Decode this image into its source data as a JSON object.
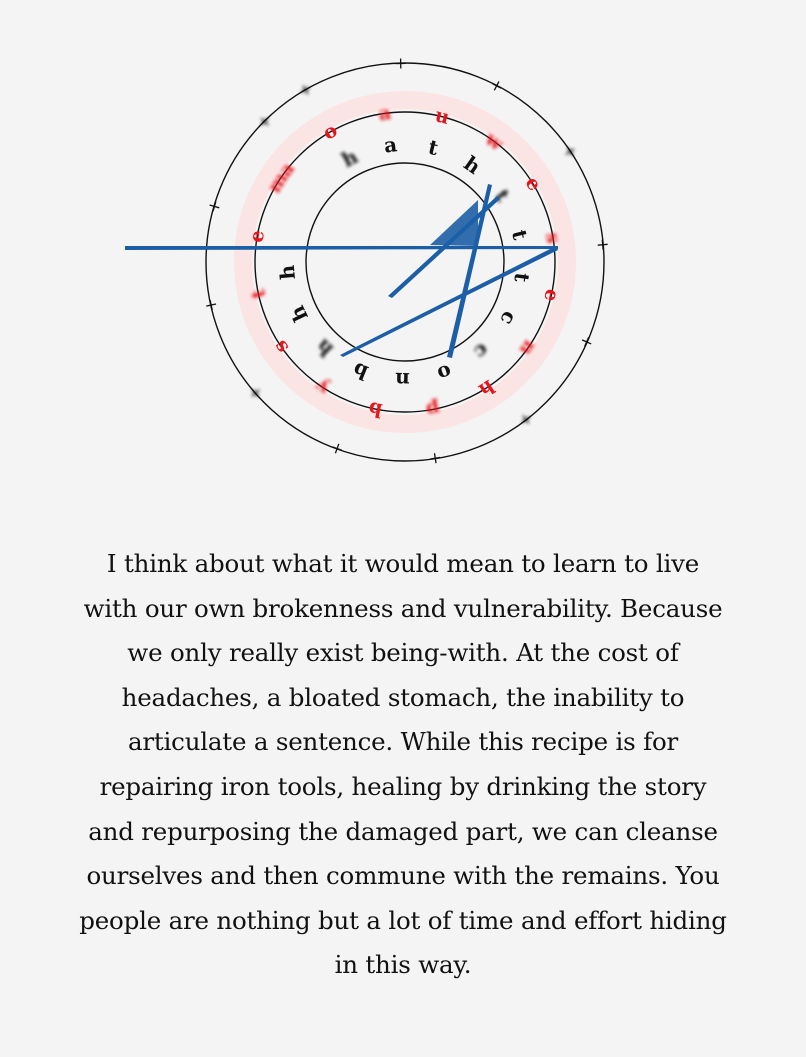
{
  "figure": {
    "inner_ring_letters": [
      "h",
      "a",
      "t",
      "h",
      "t",
      "t",
      "t",
      "c",
      "c",
      "o",
      "n",
      "b",
      "h",
      "h",
      "h"
    ],
    "middle_ring_letters": [
      "a",
      "o",
      "a",
      "u",
      "w",
      "e",
      "s",
      "e",
      "n",
      "h",
      "p",
      "b",
      "y",
      "s",
      "t",
      "e",
      "m"
    ],
    "outer_ring_marks": [
      "+",
      "+",
      "+",
      "+",
      "+",
      "+",
      "+",
      "+",
      "+",
      "+",
      "+",
      "+",
      "+"
    ],
    "colors": {
      "ring_stroke": "#111111",
      "red_letters": "#e8141b",
      "red_halo": "#fbe4e4",
      "blue_mark": "#1d5fa6"
    },
    "blue_mark_icon": "slanted-blue-strokes"
  },
  "poem": {
    "lines": [
      "I think about what it would mean to learn to live",
      "with our own brokenness and vulnerability. Because",
      "we only really exist being-with. At the cost of",
      "headaches, a bloated stomach, the inability to",
      "articulate a sentence. While this recipe is for",
      "repairing iron tools, healing by drinking the story",
      "and repurposing the damaged part, we can cleanse",
      "ourselves and then commune with the remains. You",
      "people are nothing but a lot of time and effort hiding",
      "in this way."
    ]
  }
}
